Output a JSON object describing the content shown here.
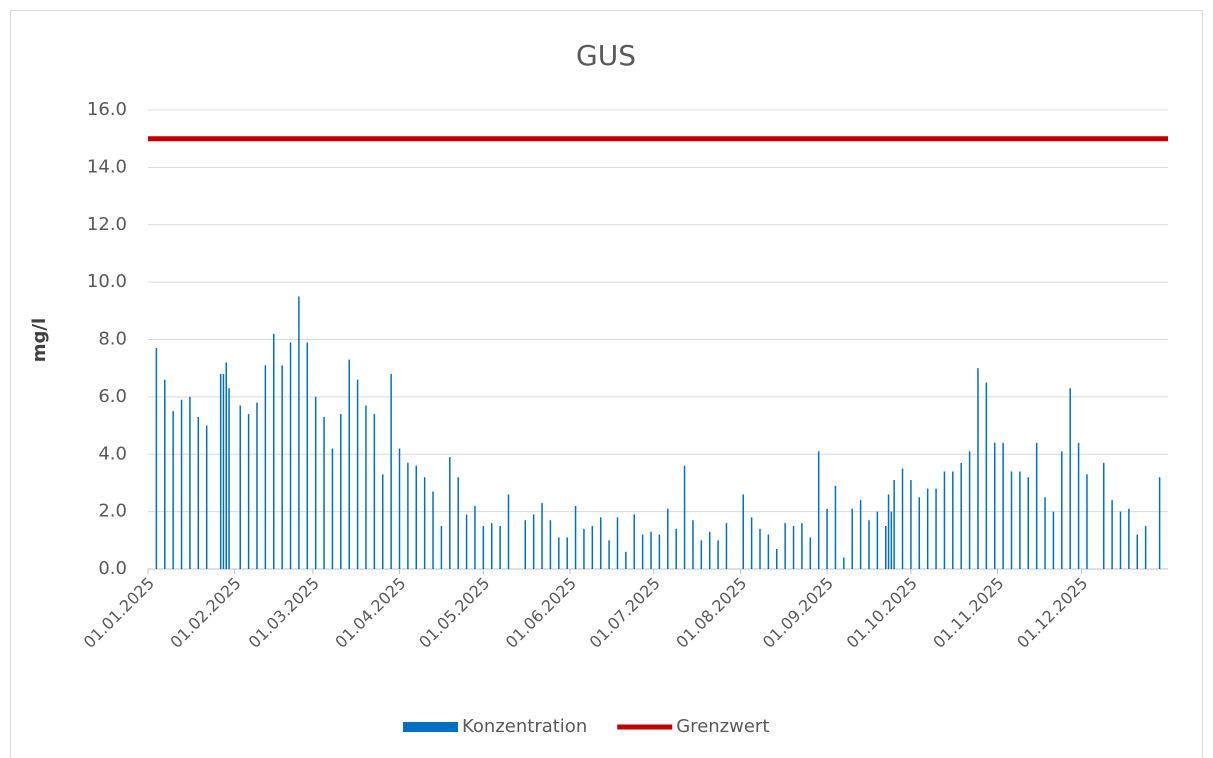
{
  "chart_data": {
    "type": "bar",
    "title": "GUS",
    "y_label": "mg/l",
    "xlim": [
      "2025-01-01",
      "2026-01-01"
    ],
    "xticks": [
      {
        "value": "2025-01-01",
        "label": "01.01.2025"
      },
      {
        "value": "2025-02-01",
        "label": "01.02.2025"
      },
      {
        "value": "2025-03-01",
        "label": "01.03.2025"
      },
      {
        "value": "2025-04-01",
        "label": "01.04.2025"
      },
      {
        "value": "2025-05-01",
        "label": "01.05.2025"
      },
      {
        "value": "2025-06-01",
        "label": "01.06.2025"
      },
      {
        "value": "2025-07-01",
        "label": "01.07.2025"
      },
      {
        "value": "2025-08-01",
        "label": "01.08.2025"
      },
      {
        "value": "2025-09-01",
        "label": "01.09.2025"
      },
      {
        "value": "2025-10-01",
        "label": "01.10.2025"
      },
      {
        "value": "2025-11-01",
        "label": "01.11.2025"
      },
      {
        "value": "2025-12-01",
        "label": "01.12.2025"
      }
    ],
    "ylim": [
      0,
      16
    ],
    "yticks": [
      {
        "value": 0,
        "label": "0.0"
      },
      {
        "value": 2,
        "label": "2.0"
      },
      {
        "value": 4,
        "label": "4.0"
      },
      {
        "value": 6,
        "label": "6.0"
      },
      {
        "value": 8,
        "label": "8.0"
      },
      {
        "value": 10,
        "label": "10.0"
      },
      {
        "value": 12,
        "label": "12.0"
      },
      {
        "value": 14,
        "label": "14.0"
      },
      {
        "value": 16,
        "label": "16.0"
      }
    ],
    "grid": true,
    "legend": "bottom",
    "series": [
      {
        "name": "Konzentration",
        "type": "bar",
        "color": "#0070c0",
        "x": [
          "2025-01-04",
          "2025-01-07",
          "2025-01-10",
          "2025-01-13",
          "2025-01-16",
          "2025-01-19",
          "2025-01-22",
          "2025-01-27",
          "2025-01-28",
          "2025-01-29",
          "2025-01-30",
          "2025-02-03",
          "2025-02-06",
          "2025-02-09",
          "2025-02-12",
          "2025-02-15",
          "2025-02-18",
          "2025-02-21",
          "2025-02-24",
          "2025-02-27",
          "2025-03-02",
          "2025-03-05",
          "2025-03-08",
          "2025-03-11",
          "2025-03-14",
          "2025-03-17",
          "2025-03-20",
          "2025-03-23",
          "2025-03-26",
          "2025-03-29",
          "2025-04-01",
          "2025-04-04",
          "2025-04-07",
          "2025-04-10",
          "2025-04-13",
          "2025-04-16",
          "2025-04-19",
          "2025-04-22",
          "2025-04-25",
          "2025-04-28",
          "2025-05-01",
          "2025-05-04",
          "2025-05-07",
          "2025-05-10",
          "2025-05-16",
          "2025-05-19",
          "2025-05-22",
          "2025-05-25",
          "2025-05-28",
          "2025-05-31",
          "2025-06-03",
          "2025-06-06",
          "2025-06-09",
          "2025-06-12",
          "2025-06-15",
          "2025-06-18",
          "2025-06-21",
          "2025-06-24",
          "2025-06-27",
          "2025-06-30",
          "2025-07-03",
          "2025-07-06",
          "2025-07-09",
          "2025-07-12",
          "2025-07-15",
          "2025-07-18",
          "2025-07-21",
          "2025-07-24",
          "2025-07-27",
          "2025-08-02",
          "2025-08-05",
          "2025-08-08",
          "2025-08-11",
          "2025-08-14",
          "2025-08-17",
          "2025-08-20",
          "2025-08-23",
          "2025-08-26",
          "2025-08-29",
          "2025-09-01",
          "2025-09-04",
          "2025-09-07",
          "2025-09-10",
          "2025-09-13",
          "2025-09-16",
          "2025-09-19",
          "2025-09-22",
          "2025-09-23",
          "2025-09-24",
          "2025-09-25",
          "2025-09-28",
          "2025-10-01",
          "2025-10-04",
          "2025-10-07",
          "2025-10-10",
          "2025-10-13",
          "2025-10-16",
          "2025-10-19",
          "2025-10-22",
          "2025-10-25",
          "2025-10-28",
          "2025-10-31",
          "2025-11-03",
          "2025-11-06",
          "2025-11-09",
          "2025-11-12",
          "2025-11-15",
          "2025-11-18",
          "2025-11-21",
          "2025-11-24",
          "2025-11-27",
          "2025-11-30",
          "2025-12-03",
          "2025-12-09",
          "2025-12-12",
          "2025-12-15",
          "2025-12-18",
          "2025-12-21",
          "2025-12-24",
          "2025-12-29"
        ],
        "values": [
          7.7,
          6.6,
          5.5,
          5.9,
          6.0,
          5.3,
          5.0,
          6.8,
          6.8,
          7.2,
          6.3,
          5.7,
          5.4,
          5.8,
          7.1,
          8.2,
          7.1,
          7.9,
          9.5,
          7.9,
          6.0,
          5.3,
          4.2,
          5.4,
          7.3,
          6.6,
          5.7,
          5.4,
          3.3,
          6.8,
          4.2,
          3.7,
          3.6,
          3.2,
          2.7,
          1.5,
          3.9,
          3.2,
          1.9,
          2.2,
          1.5,
          1.6,
          1.5,
          2.6,
          1.7,
          1.9,
          2.3,
          1.7,
          1.1,
          1.1,
          2.2,
          1.4,
          1.5,
          1.8,
          1.0,
          1.8,
          0.6,
          1.9,
          1.2,
          1.3,
          1.2,
          2.1,
          1.4,
          3.6,
          1.7,
          1.0,
          1.3,
          1.0,
          1.6,
          2.6,
          1.8,
          1.4,
          1.2,
          0.7,
          1.6,
          1.5,
          1.6,
          1.1,
          4.1,
          2.1,
          2.9,
          0.4,
          2.1,
          2.4,
          1.7,
          2.0,
          1.5,
          2.6,
          2.0,
          3.1,
          3.5,
          3.1,
          2.5,
          2.8,
          2.8,
          3.4,
          3.4,
          3.7,
          4.1,
          7.0,
          6.5,
          4.4,
          4.4,
          3.4,
          3.4,
          3.2,
          4.4,
          2.5,
          2.0,
          4.1,
          6.3,
          4.4,
          3.3,
          3.7,
          2.4,
          2.0,
          2.1,
          1.2,
          1.5,
          3.2
        ]
      },
      {
        "name": "Grenzwert",
        "type": "line",
        "color": "#c00000",
        "x": [
          "2025-01-01",
          "2026-01-01"
        ],
        "values": [
          15,
          15
        ]
      }
    ]
  }
}
